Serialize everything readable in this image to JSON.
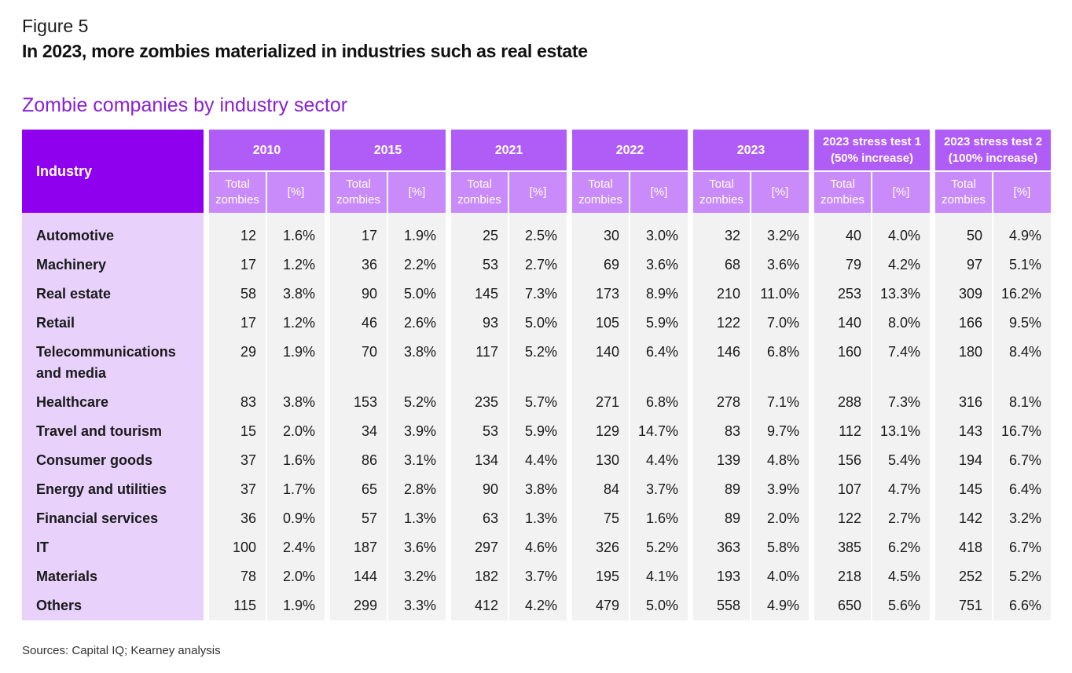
{
  "figure_label": "Figure 5",
  "figure_title": "In 2023, more zombies materialized in industries such as real estate",
  "subtitle": "Zombie companies by industry sector",
  "source": "Sources: Capital IQ; Kearney analysis",
  "colors": {
    "header_dark": "#8f00ee",
    "header_mid": "#b05cf7",
    "header_light": "#c98bfa",
    "industry_bg": "#e8d2fc",
    "cell_bg": "#f2f2f2",
    "subtitle": "#8a1fd8"
  },
  "chart_data": {
    "type": "table",
    "industry_header": "Industry",
    "total_label": "Total zombies",
    "pct_label": "[%]",
    "periods": [
      "2010",
      "2015",
      "2021",
      "2022",
      "2023",
      "2023 stress test 1 (50% increase)",
      "2023 stress test 2 (100% increase)"
    ],
    "rows": [
      {
        "industry": "Automotive",
        "values": [
          [
            "12",
            "1.6%"
          ],
          [
            "17",
            "1.9%"
          ],
          [
            "25",
            "2.5%"
          ],
          [
            "30",
            "3.0%"
          ],
          [
            "32",
            "3.2%"
          ],
          [
            "40",
            "4.0%"
          ],
          [
            "50",
            "4.9%"
          ]
        ]
      },
      {
        "industry": "Machinery",
        "values": [
          [
            "17",
            "1.2%"
          ],
          [
            "36",
            "2.2%"
          ],
          [
            "53",
            "2.7%"
          ],
          [
            "69",
            "3.6%"
          ],
          [
            "68",
            "3.6%"
          ],
          [
            "79",
            "4.2%"
          ],
          [
            "97",
            "5.1%"
          ]
        ]
      },
      {
        "industry": "Real estate",
        "values": [
          [
            "58",
            "3.8%"
          ],
          [
            "90",
            "5.0%"
          ],
          [
            "145",
            "7.3%"
          ],
          [
            "173",
            "8.9%"
          ],
          [
            "210",
            "11.0%"
          ],
          [
            "253",
            "13.3%"
          ],
          [
            "309",
            "16.2%"
          ]
        ]
      },
      {
        "industry": "Retail",
        "values": [
          [
            "17",
            "1.2%"
          ],
          [
            "46",
            "2.6%"
          ],
          [
            "93",
            "5.0%"
          ],
          [
            "105",
            "5.9%"
          ],
          [
            "122",
            "7.0%"
          ],
          [
            "140",
            "8.0%"
          ],
          [
            "166",
            "9.5%"
          ]
        ]
      },
      {
        "industry": "Telecommunications and media",
        "values": [
          [
            "29",
            "1.9%"
          ],
          [
            "70",
            "3.8%"
          ],
          [
            "117",
            "5.2%"
          ],
          [
            "140",
            "6.4%"
          ],
          [
            "146",
            "6.8%"
          ],
          [
            "160",
            "7.4%"
          ],
          [
            "180",
            "8.4%"
          ]
        ]
      },
      {
        "industry": "Healthcare",
        "values": [
          [
            "83",
            "3.8%"
          ],
          [
            "153",
            "5.2%"
          ],
          [
            "235",
            "5.7%"
          ],
          [
            "271",
            "6.8%"
          ],
          [
            "278",
            "7.1%"
          ],
          [
            "288",
            "7.3%"
          ],
          [
            "316",
            "8.1%"
          ]
        ]
      },
      {
        "industry": "Travel and tourism",
        "values": [
          [
            "15",
            "2.0%"
          ],
          [
            "34",
            "3.9%"
          ],
          [
            "53",
            "5.9%"
          ],
          [
            "129",
            "14.7%"
          ],
          [
            "83",
            "9.7%"
          ],
          [
            "112",
            "13.1%"
          ],
          [
            "143",
            "16.7%"
          ]
        ]
      },
      {
        "industry": "Consumer goods",
        "values": [
          [
            "37",
            "1.6%"
          ],
          [
            "86",
            "3.1%"
          ],
          [
            "134",
            "4.4%"
          ],
          [
            "130",
            "4.4%"
          ],
          [
            "139",
            "4.8%"
          ],
          [
            "156",
            "5.4%"
          ],
          [
            "194",
            "6.7%"
          ]
        ]
      },
      {
        "industry": "Energy and utilities",
        "values": [
          [
            "37",
            "1.7%"
          ],
          [
            "65",
            "2.8%"
          ],
          [
            "90",
            "3.8%"
          ],
          [
            "84",
            "3.7%"
          ],
          [
            "89",
            "3.9%"
          ],
          [
            "107",
            "4.7%"
          ],
          [
            "145",
            "6.4%"
          ]
        ]
      },
      {
        "industry": "Financial services",
        "values": [
          [
            "36",
            "0.9%"
          ],
          [
            "57",
            "1.3%"
          ],
          [
            "63",
            "1.3%"
          ],
          [
            "75",
            "1.6%"
          ],
          [
            "89",
            "2.0%"
          ],
          [
            "122",
            "2.7%"
          ],
          [
            "142",
            "3.2%"
          ]
        ]
      },
      {
        "industry": "IT",
        "values": [
          [
            "100",
            "2.4%"
          ],
          [
            "187",
            "3.6%"
          ],
          [
            "297",
            "4.6%"
          ],
          [
            "326",
            "5.2%"
          ],
          [
            "363",
            "5.8%"
          ],
          [
            "385",
            "6.2%"
          ],
          [
            "418",
            "6.7%"
          ]
        ]
      },
      {
        "industry": "Materials",
        "values": [
          [
            "78",
            "2.0%"
          ],
          [
            "144",
            "3.2%"
          ],
          [
            "182",
            "3.7%"
          ],
          [
            "195",
            "4.1%"
          ],
          [
            "193",
            "4.0%"
          ],
          [
            "218",
            "4.5%"
          ],
          [
            "252",
            "5.2%"
          ]
        ]
      },
      {
        "industry": "Others",
        "values": [
          [
            "115",
            "1.9%"
          ],
          [
            "299",
            "3.3%"
          ],
          [
            "412",
            "4.2%"
          ],
          [
            "479",
            "5.0%"
          ],
          [
            "558",
            "4.9%"
          ],
          [
            "650",
            "5.6%"
          ],
          [
            "751",
            "6.6%"
          ]
        ]
      }
    ]
  }
}
